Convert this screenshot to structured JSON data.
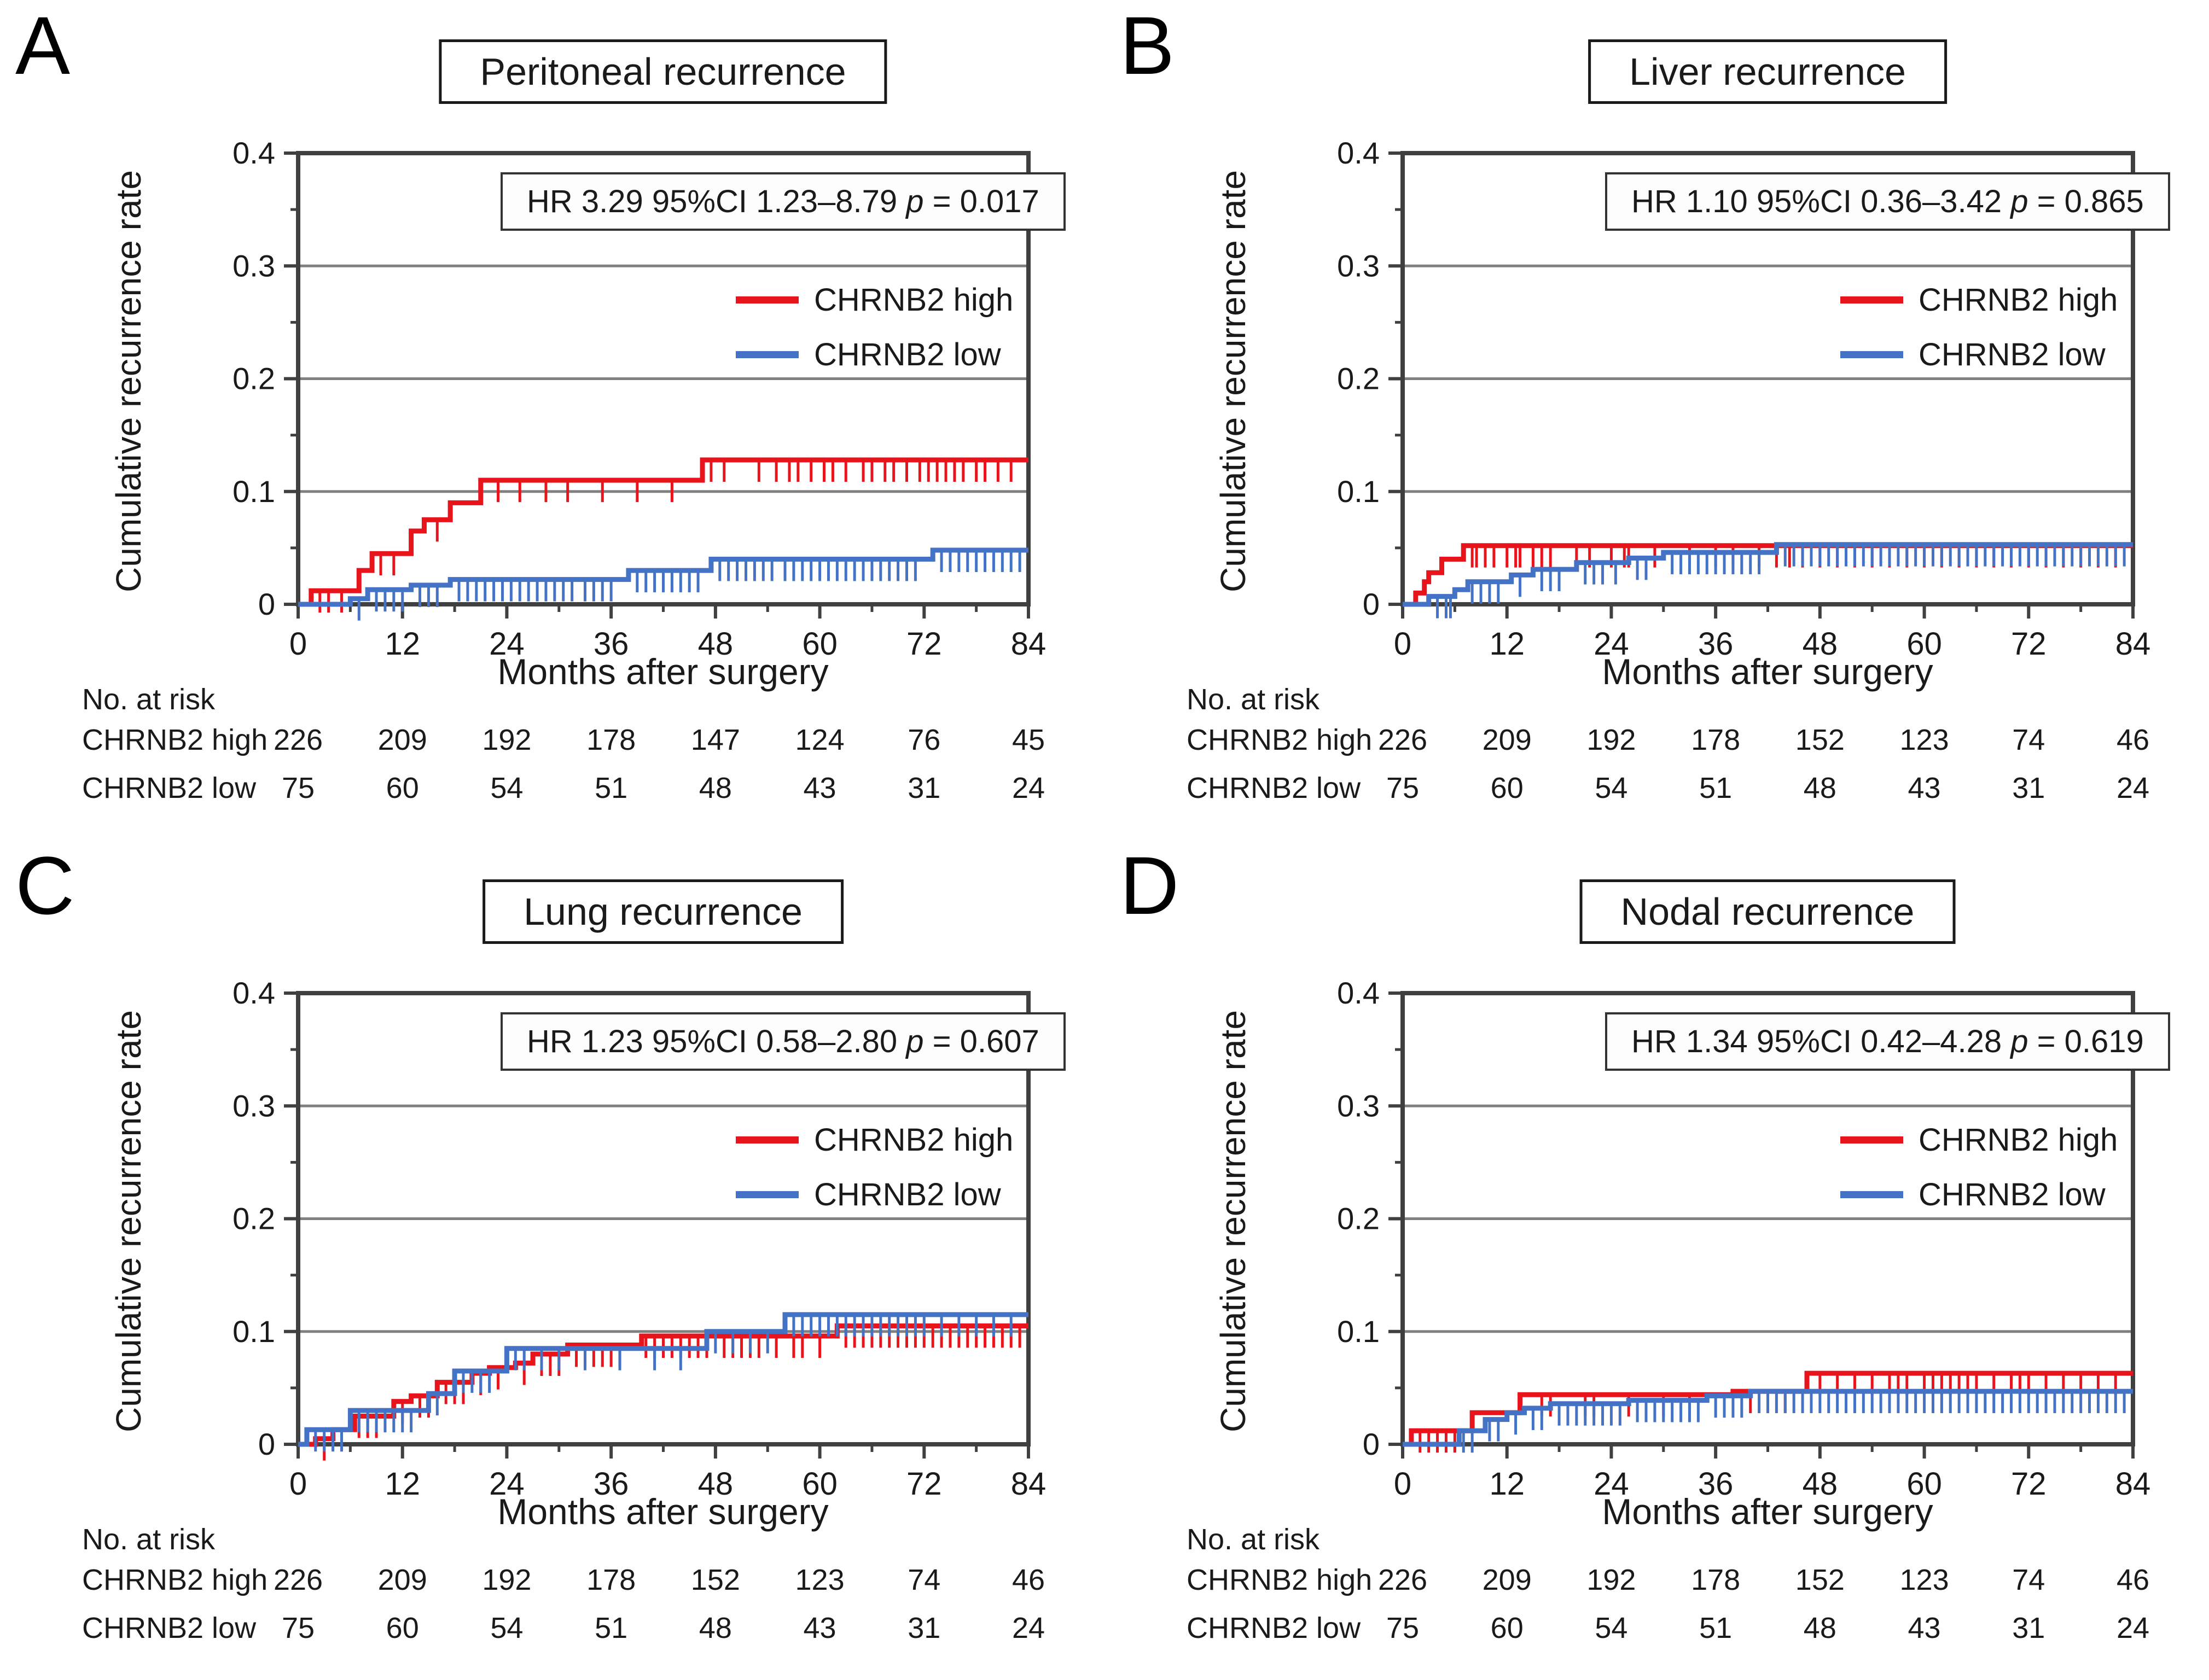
{
  "figure": {
    "background": "#ffffff"
  },
  "colors": {
    "high": "#e8141c",
    "low": "#4472c4",
    "grid": "#808080",
    "axis": "#404040"
  },
  "legend": {
    "high": "CHRNB2 high",
    "low": "CHRNB2 low"
  },
  "chart_data": [
    {
      "panel": "A",
      "title": "Peritoneal recurrence",
      "hr_stat": "HR 3.29 95%CI 1.23–8.79 ",
      "p_label": "p",
      "hr_p": " = 0.017",
      "type": "line",
      "step": true,
      "xlabel": "Months after surgery",
      "ylabel": "Cumulative recurrence rate",
      "xlim": [
        0,
        84
      ],
      "ylim": [
        0,
        0.4
      ],
      "xticks": [
        0,
        12,
        24,
        36,
        48,
        60,
        72,
        84
      ],
      "yticks": [
        0,
        0.1,
        0.2,
        0.3,
        0.4
      ],
      "grid": true,
      "legend_position": "upper right",
      "series": [
        {
          "name": "CHRNB2 high",
          "color": "#e8141c",
          "steps": [
            [
              0,
              0
            ],
            [
              1.5,
              0.012
            ],
            [
              7,
              0.03
            ],
            [
              8.5,
              0.045
            ],
            [
              13,
              0.065
            ],
            [
              14.5,
              0.075
            ],
            [
              17.5,
              0.09
            ],
            [
              21,
              0.11
            ],
            [
              46.5,
              0.128
            ],
            [
              84,
              0.128
            ]
          ],
          "censors": [
            2.5,
            3.5,
            5,
            9.5,
            11,
            16,
            23,
            25.5,
            28.5,
            31,
            35,
            39,
            43,
            47.5,
            49,
            53,
            55,
            56.5,
            57.5,
            59,
            60.5,
            61.5,
            63,
            65,
            66,
            67.5,
            68.5,
            70,
            71.5,
            72.5,
            73.5,
            74.5,
            75.5,
            76.5,
            78,
            79,
            80.5,
            82
          ]
        },
        {
          "name": "CHRNB2 low",
          "color": "#4472c4",
          "steps": [
            [
              0,
              0
            ],
            [
              6,
              0.005
            ],
            [
              8,
              0.013
            ],
            [
              13,
              0.017
            ],
            [
              17.5,
              0.022
            ],
            [
              38,
              0.03
            ],
            [
              47.5,
              0.04
            ],
            [
              73,
              0.048
            ],
            [
              84,
              0.048
            ]
          ],
          "censors": [
            7,
            9,
            10,
            11,
            12,
            14,
            15,
            16,
            18.5,
            19.5,
            20.5,
            21.5,
            22.5,
            23.5,
            24.5,
            25.5,
            26.5,
            27.5,
            28.5,
            29.5,
            30.5,
            31.5,
            33,
            34,
            35,
            36,
            39,
            40,
            41,
            42,
            43,
            44,
            45,
            46,
            48.5,
            49.5,
            50.5,
            51.5,
            52.5,
            53.5,
            54.5,
            56,
            57,
            58,
            59,
            60,
            61,
            62,
            63,
            64,
            65,
            66,
            67,
            68,
            69,
            70,
            71,
            74,
            75,
            76,
            77,
            78,
            79,
            80,
            81,
            82,
            83
          ]
        }
      ],
      "risk_table": {
        "label": "No. at risk",
        "rows": [
          {
            "name": "CHRNB2 high",
            "values": [
              226,
              209,
              192,
              178,
              147,
              124,
              76,
              45
            ]
          },
          {
            "name": "CHRNB2 low",
            "values": [
              75,
              60,
              54,
              51,
              48,
              43,
              31,
              24
            ]
          }
        ]
      }
    },
    {
      "panel": "B",
      "title": "Liver recurrence",
      "hr_stat": "HR 1.10 95%CI 0.36–3.42 ",
      "p_label": "p",
      "hr_p": " = 0.865",
      "type": "line",
      "step": true,
      "xlabel": "Months after surgery",
      "ylabel": "Cumulative recurrence rate",
      "xlim": [
        0,
        84
      ],
      "ylim": [
        0,
        0.4
      ],
      "xticks": [
        0,
        12,
        24,
        36,
        48,
        60,
        72,
        84
      ],
      "yticks": [
        0,
        0.1,
        0.2,
        0.3,
        0.4
      ],
      "grid": true,
      "legend_position": "upper right",
      "series": [
        {
          "name": "CHRNB2 high",
          "color": "#e8141c",
          "steps": [
            [
              0,
              0
            ],
            [
              1.5,
              0.01
            ],
            [
              2.5,
              0.02
            ],
            [
              3,
              0.028
            ],
            [
              4.5,
              0.04
            ],
            [
              7,
              0.052
            ],
            [
              84,
              0.052
            ]
          ],
          "censors": [
            8,
            8.5,
            9.5,
            10.5,
            12,
            13,
            13.5,
            15,
            16,
            17,
            20,
            21.5,
            24,
            25.5,
            26,
            29,
            33,
            36,
            38,
            41,
            43,
            44.5,
            46,
            48,
            50,
            52,
            54,
            56,
            58,
            60,
            62,
            64,
            66,
            68,
            70,
            72,
            74,
            76,
            78,
            80,
            82
          ]
        },
        {
          "name": "CHRNB2 low",
          "color": "#4472c4",
          "steps": [
            [
              0,
              0
            ],
            [
              3,
              0.007
            ],
            [
              6,
              0.013
            ],
            [
              7.5,
              0.02
            ],
            [
              12.5,
              0.026
            ],
            [
              15,
              0.031
            ],
            [
              20,
              0.037
            ],
            [
              26,
              0.041
            ],
            [
              30,
              0.046
            ],
            [
              43,
              0.053
            ],
            [
              84,
              0.053
            ]
          ],
          "censors": [
            4,
            5,
            5.5,
            8,
            9,
            10,
            11,
            13.5,
            16,
            17,
            18,
            21,
            22,
            23,
            24.5,
            27,
            28,
            31,
            32,
            33,
            34,
            35,
            36,
            37,
            38,
            39,
            40,
            41,
            44,
            45,
            46,
            47,
            48,
            49,
            50,
            51,
            52,
            53,
            54,
            55,
            56,
            57,
            58,
            59,
            60,
            61,
            62,
            63,
            64,
            65,
            66,
            67,
            68,
            69,
            70,
            71,
            72,
            73,
            74,
            75,
            76,
            77,
            78,
            79,
            80,
            81,
            82,
            83
          ]
        }
      ],
      "risk_table": {
        "label": "No. at risk",
        "rows": [
          {
            "name": "CHRNB2 high",
            "values": [
              226,
              209,
              192,
              178,
              152,
              123,
              74,
              46
            ]
          },
          {
            "name": "CHRNB2 low",
            "values": [
              75,
              60,
              54,
              51,
              48,
              43,
              31,
              24
            ]
          }
        ]
      }
    },
    {
      "panel": "C",
      "title": "Lung recurrence",
      "hr_stat": "HR 1.23 95%CI 0.58–2.80 ",
      "p_label": "p",
      "hr_p": " = 0.607",
      "type": "line",
      "step": true,
      "xlabel": "Months after surgery",
      "ylabel": "Cumulative recurrence rate",
      "xlim": [
        0,
        84
      ],
      "ylim": [
        0,
        0.4
      ],
      "xticks": [
        0,
        12,
        24,
        36,
        48,
        60,
        72,
        84
      ],
      "yticks": [
        0,
        0.1,
        0.2,
        0.3,
        0.4
      ],
      "grid": true,
      "legend_position": "upper right",
      "series": [
        {
          "name": "CHRNB2 high",
          "color": "#e8141c",
          "steps": [
            [
              0,
              0
            ],
            [
              2,
              0.005
            ],
            [
              4,
              0.013
            ],
            [
              6.5,
              0.025
            ],
            [
              11,
              0.038
            ],
            [
              13,
              0.043
            ],
            [
              16,
              0.055
            ],
            [
              20,
              0.063
            ],
            [
              22,
              0.068
            ],
            [
              25,
              0.072
            ],
            [
              27,
              0.08
            ],
            [
              31,
              0.088
            ],
            [
              39.5,
              0.096
            ],
            [
              62,
              0.105
            ],
            [
              84,
              0.105
            ]
          ],
          "censors": [
            3,
            5,
            7,
            8,
            9,
            12,
            14,
            15,
            17,
            18,
            19,
            21,
            23,
            26,
            28,
            29,
            30,
            32,
            33,
            34,
            35,
            36,
            37,
            40,
            41,
            42,
            43,
            44,
            45,
            46,
            47,
            49,
            50,
            51,
            52,
            53,
            55,
            57,
            58,
            60,
            63,
            64,
            65,
            66,
            67,
            68,
            69,
            70,
            71,
            72,
            73,
            74,
            75,
            76,
            77,
            78,
            79,
            80,
            81,
            82,
            83
          ]
        },
        {
          "name": "CHRNB2 low",
          "color": "#4472c4",
          "steps": [
            [
              0,
              0
            ],
            [
              1,
              0.013
            ],
            [
              6,
              0.03
            ],
            [
              15,
              0.045
            ],
            [
              18,
              0.065
            ],
            [
              24,
              0.085
            ],
            [
              47,
              0.1
            ],
            [
              56,
              0.115
            ],
            [
              84,
              0.115
            ]
          ],
          "censors": [
            2,
            3,
            4,
            5,
            7,
            8,
            9,
            10,
            11,
            12,
            13,
            16,
            19,
            20,
            21,
            22,
            25,
            26,
            28,
            30,
            33,
            37,
            41,
            44,
            48,
            50,
            52,
            54,
            57,
            58,
            59,
            60,
            61,
            62,
            63,
            64,
            65,
            66,
            67,
            68,
            69,
            70,
            71,
            72,
            74,
            76,
            78,
            80,
            82
          ]
        }
      ],
      "risk_table": {
        "label": "No. at risk",
        "rows": [
          {
            "name": "CHRNB2 high",
            "values": [
              226,
              209,
              192,
              178,
              152,
              123,
              74,
              46
            ]
          },
          {
            "name": "CHRNB2 low",
            "values": [
              75,
              60,
              54,
              51,
              48,
              43,
              31,
              24
            ]
          }
        ]
      }
    },
    {
      "panel": "D",
      "title": "Nodal recurrence",
      "hr_stat": "HR 1.34 95%CI 0.42–4.28 ",
      "p_label": "p",
      "hr_p": " = 0.619",
      "type": "line",
      "step": true,
      "xlabel": "Months after surgery",
      "ylabel": "Cumulative recurrence rate",
      "xlim": [
        0,
        84
      ],
      "ylim": [
        0,
        0.4
      ],
      "xticks": [
        0,
        12,
        24,
        36,
        48,
        60,
        72,
        84
      ],
      "yticks": [
        0,
        0.1,
        0.2,
        0.3,
        0.4
      ],
      "grid": true,
      "legend_position": "upper right",
      "series": [
        {
          "name": "CHRNB2 high",
          "color": "#e8141c",
          "steps": [
            [
              0,
              0
            ],
            [
              1,
              0.012
            ],
            [
              8,
              0.028
            ],
            [
              13.5,
              0.044
            ],
            [
              38,
              0.047
            ],
            [
              46.5,
              0.063
            ],
            [
              84,
              0.063
            ]
          ],
          "censors": [
            2,
            3,
            4,
            5,
            6,
            16,
            17,
            21,
            22,
            26,
            30,
            33,
            40,
            42,
            44,
            48,
            50,
            52,
            54,
            56,
            57,
            58,
            60,
            61,
            62,
            63,
            64,
            65,
            66,
            68,
            70,
            71,
            72,
            74,
            76,
            78,
            80,
            82
          ]
        },
        {
          "name": "CHRNB2 low",
          "color": "#4472c4",
          "steps": [
            [
              0,
              0
            ],
            [
              6.5,
              0.012
            ],
            [
              9.5,
              0.022
            ],
            [
              12,
              0.028
            ],
            [
              14,
              0.032
            ],
            [
              17,
              0.036
            ],
            [
              26,
              0.039
            ],
            [
              35,
              0.043
            ],
            [
              40,
              0.047
            ],
            [
              84,
              0.047
            ]
          ],
          "censors": [
            7,
            8,
            10,
            11,
            13,
            15,
            16,
            18,
            19,
            20,
            21,
            22,
            23,
            24,
            25,
            27,
            28,
            29,
            30,
            31,
            32,
            33,
            34,
            36,
            37,
            38,
            39,
            41,
            42,
            43,
            44,
            45,
            46,
            47,
            48,
            49,
            50,
            51,
            52,
            53,
            54,
            55,
            56,
            57,
            58,
            59,
            60,
            61,
            62,
            63,
            64,
            65,
            66,
            67,
            68,
            69,
            70,
            71,
            72,
            73,
            74,
            75,
            76,
            77,
            78,
            79,
            80,
            81,
            82,
            83
          ]
        }
      ],
      "risk_table": {
        "label": "No. at risk",
        "rows": [
          {
            "name": "CHRNB2 high",
            "values": [
              226,
              209,
              192,
              178,
              152,
              123,
              74,
              46
            ]
          },
          {
            "name": "CHRNB2 low",
            "values": [
              75,
              60,
              54,
              51,
              48,
              43,
              31,
              24
            ]
          }
        ]
      }
    }
  ]
}
